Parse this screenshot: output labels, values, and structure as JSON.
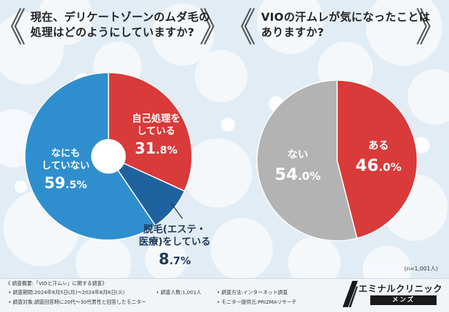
{
  "chart_data": [
    {
      "type": "pie",
      "style": "donut",
      "title": "現在、デリケートゾーンのムダ毛の処理はどのようにしていますか?",
      "title_lines": [
        "現在、デリケートゾーンのムダ毛の",
        "処理はどのようにしていますか?"
      ],
      "slices": [
        {
          "label": "自己処理をしている",
          "label_lines": [
            "自己処理を",
            "している"
          ],
          "value": 31.8,
          "color": "#d93a3a",
          "int": "31",
          "dec": ".8%"
        },
        {
          "label": "脱毛(エステ・医療)をしている",
          "label_lines": [
            "脱毛(エステ・",
            "医療)をしている"
          ],
          "value": 8.7,
          "color": "#1e639f",
          "int": "8",
          "dec": ".7%"
        },
        {
          "label": "なにもしていない",
          "label_lines": [
            "なにも",
            "していない"
          ],
          "value": 59.5,
          "color": "#2f8fce",
          "int": "59",
          "dec": ".5%"
        }
      ]
    },
    {
      "type": "pie",
      "title": "VIOの汗ムレが気になったことはありますか?",
      "title_lines": [
        "VIOの汗ムレが気になったことは",
        "ありますか?"
      ],
      "slices": [
        {
          "label": "ある",
          "label_lines": [
            "ある"
          ],
          "value": 46.0,
          "color": "#d93a3a",
          "int": "46",
          "dec": ".0%"
        },
        {
          "label": "ない",
          "label_lines": [
            "ない"
          ],
          "value": 54.0,
          "color": "#b3b3b3",
          "int": "54",
          "dec": ".0%"
        }
      ]
    }
  ],
  "sample_size": "(n=1,001人)",
  "survey": {
    "overview": "《 調査概要:「VIOと汗ムレ」に関する調査》",
    "period": "• 調査期間:2024年8月5日(月)〜2024年8月6日(火)",
    "count": "• 調査人数:1,001人",
    "method": "• 調査方法:インターネット調査",
    "target": "• 調査対象:調査回答時に20代〜30代男性と回答したモニター",
    "provider": "• モニター提供元:PRIZMAリサーチ"
  },
  "logo": {
    "name": "エミナルクリニック",
    "sub": "メンズ"
  },
  "colors": {
    "red": "#d93a3a",
    "blue": "#2f8fce",
    "dark_blue": "#1e639f",
    "gray": "#b3b3b3"
  }
}
